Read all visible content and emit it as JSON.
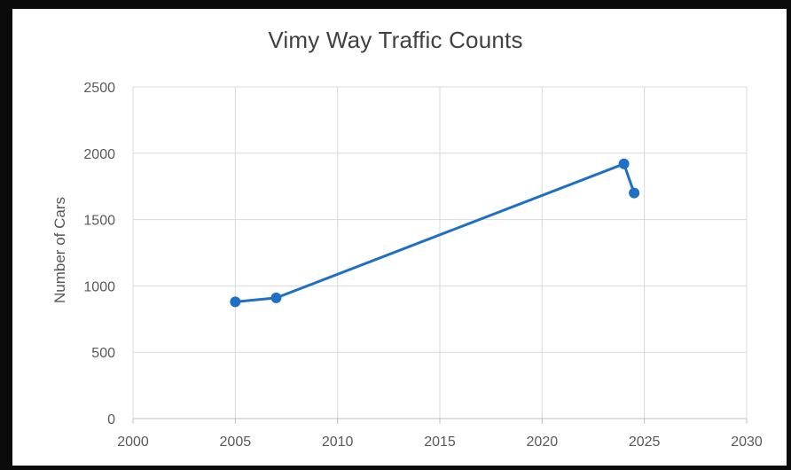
{
  "chart_data": {
    "type": "line",
    "title": "Vimy Way Traffic Counts",
    "xlabel": "",
    "ylabel": "Number of Cars",
    "xlim": [
      2000,
      2030
    ],
    "ylim": [
      0,
      2500
    ],
    "x_ticks": [
      "2000",
      "2005",
      "2010",
      "2015",
      "2020",
      "2025",
      "2030"
    ],
    "y_ticks": [
      "0",
      "500",
      "1000",
      "1500",
      "2000",
      "2500"
    ],
    "grid": true,
    "legend": "none",
    "series": [
      {
        "color": "#1f6fc5",
        "points": [
          {
            "x": 2005,
            "y": 880
          },
          {
            "x": 2007,
            "y": 910
          },
          {
            "x": 2024,
            "y": 1920
          },
          {
            "x": 2024.5,
            "y": 1700
          }
        ]
      }
    ]
  }
}
